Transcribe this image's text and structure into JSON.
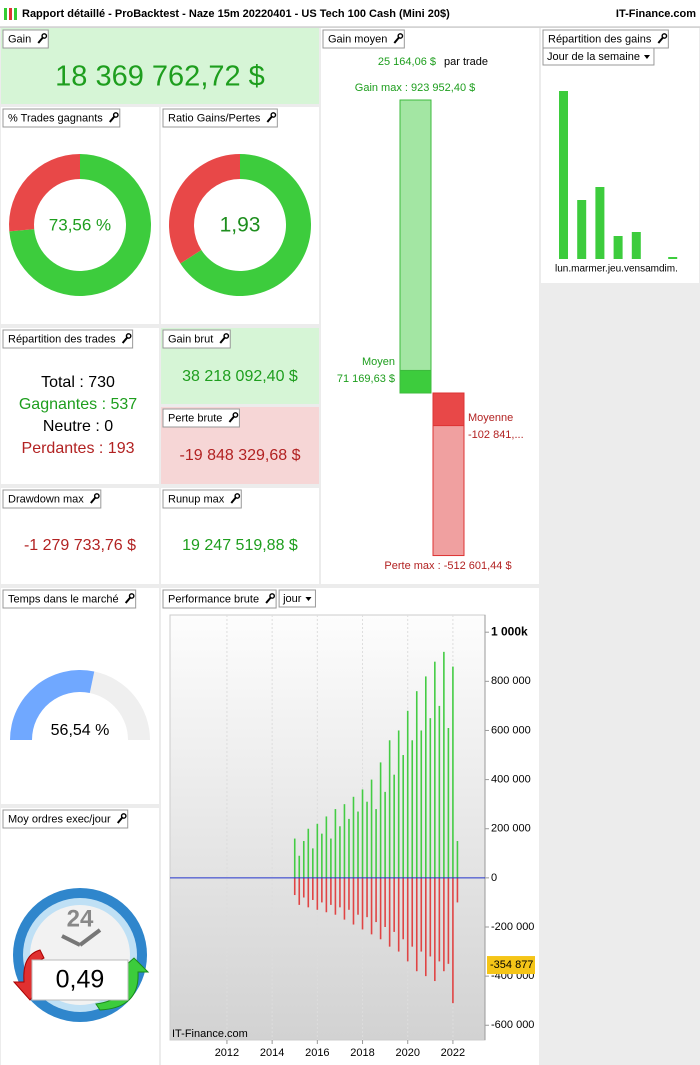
{
  "header": {
    "title": "Rapport détaillé - ProBacktest - Naze 15m 20220401 - US Tech 100 Cash (Mini 20$)",
    "site": "IT-Finance.com"
  },
  "gain": {
    "title": "Gain",
    "value": "18 369 762,72 $"
  },
  "trades_gagnants": {
    "title": "% Trades gagnants",
    "value": 73.56,
    "label": "73,56 %"
  },
  "ratio": {
    "title": "Ratio Gains/Pertes",
    "value": 1.93,
    "label": "1,93"
  },
  "repartition_trades": {
    "title": "Répartition des trades",
    "rows": [
      "Total : 730",
      "Gagnantes : 537",
      "Neutre : 0",
      "Perdantes : 193"
    ]
  },
  "gain_brut": {
    "title": "Gain brut",
    "value": "38 218 092,40 $"
  },
  "perte_brute": {
    "title": "Perte brute",
    "value": "-19 848 329,68 $"
  },
  "drawdown": {
    "title": "Drawdown max",
    "value": "-1 279 733,76 $"
  },
  "runup": {
    "title": "Runup max",
    "value": "19 247 519,88 $"
  },
  "temps": {
    "title": "Temps dans le marché",
    "value": 56.54,
    "label": "56,54 %"
  },
  "ordres": {
    "title": "Moy ordres exec/jour",
    "clock": "24",
    "value": "0,49"
  },
  "gain_moyen": {
    "title": "Gain moyen",
    "average": "25 164,06 $",
    "per_trade": "par trade",
    "gain_max": {
      "label": "Gain max : 923 952,40 $",
      "value": 923952.4
    },
    "moyen": {
      "name": "Moyen",
      "label": "71 169,63 $",
      "value": 71169.63
    },
    "moyenne": {
      "name": "Moyenne",
      "label": "-102 841,...",
      "value": -102841
    },
    "perte_max": {
      "label": "Perte max : -512 601,44 $",
      "value": -512601.44
    }
  },
  "repartition_gains": {
    "title": "Répartition des gains",
    "selector": "Jour de la semaine",
    "categories": [
      "lun.",
      "mar",
      "mer.",
      "jeu.",
      "ven",
      "sam",
      "dim."
    ],
    "values": [
      168,
      59,
      72,
      23,
      27,
      0,
      2
    ],
    "color": "#3dcc3d"
  },
  "chart_data": {
    "type": "bar",
    "title": "Performance brute",
    "selector": "jour",
    "watermark": "IT-Finance.com",
    "x": [
      2015.0,
      2015.2,
      2015.4,
      2015.6,
      2015.8,
      2016.0,
      2016.2,
      2016.4,
      2016.6,
      2016.8,
      2017.0,
      2017.2,
      2017.4,
      2017.6,
      2017.8,
      2018.0,
      2018.2,
      2018.4,
      2018.6,
      2018.8,
      2019.0,
      2019.2,
      2019.4,
      2019.6,
      2019.8,
      2020.0,
      2020.2,
      2020.4,
      2020.6,
      2020.8,
      2021.0,
      2021.2,
      2021.4,
      2021.6,
      2021.8,
      2022.0,
      2022.2
    ],
    "series": [
      {
        "name": "Gains",
        "color": "#44cc44",
        "values": [
          160000,
          90000,
          150000,
          200000,
          120000,
          220000,
          180000,
          250000,
          160000,
          280000,
          210000,
          300000,
          240000,
          330000,
          270000,
          360000,
          310000,
          400000,
          280000,
          470000,
          350000,
          560000,
          420000,
          600000,
          500000,
          680000,
          560000,
          760000,
          600000,
          820000,
          650000,
          880000,
          700000,
          920000,
          610000,
          860000,
          150000
        ]
      },
      {
        "name": "Pertes",
        "color": "#e04444",
        "values": [
          -70000,
          -110000,
          -80000,
          -120000,
          -90000,
          -130000,
          -100000,
          -140000,
          -110000,
          -150000,
          -120000,
          -170000,
          -130000,
          -190000,
          -150000,
          -210000,
          -160000,
          -230000,
          -180000,
          -250000,
          -200000,
          -280000,
          -220000,
          -300000,
          -250000,
          -340000,
          -280000,
          -380000,
          -300000,
          -400000,
          -320000,
          -420000,
          -340000,
          -380000,
          -350000,
          -510000,
          -100000
        ]
      }
    ],
    "xlim": [
      2009.48,
      2023.42
    ],
    "xticks": [
      2012,
      2014,
      2016,
      2018,
      2020,
      2022
    ],
    "ylim": [
      -660000,
      1070000
    ],
    "yticks": [
      {
        "value": 1000000,
        "label": "1 000k"
      },
      {
        "value": 800000,
        "label": "800 000"
      },
      {
        "value": 600000,
        "label": "600 000"
      },
      {
        "value": 400000,
        "label": "400 000"
      },
      {
        "value": 200000,
        "label": "200 000"
      },
      0,
      {
        "value": -200000,
        "label": "-200 000"
      },
      {
        "value": -400000,
        "label": "-400 000"
      },
      {
        "value": -600000,
        "label": "-600 000"
      }
    ],
    "marker": {
      "value": -354877,
      "label": "-354 877"
    },
    "zero_color": "#2233cc",
    "grid": true
  }
}
